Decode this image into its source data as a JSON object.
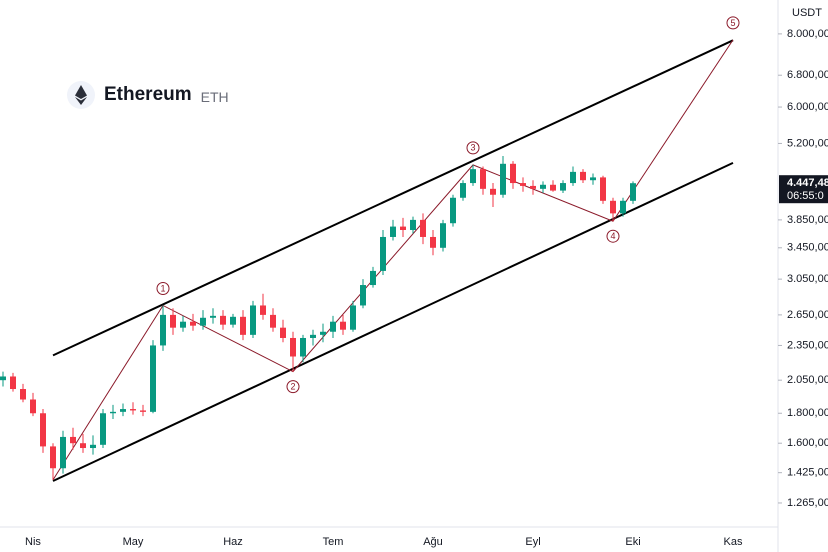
{
  "chart_data": {
    "type": "candlestick",
    "title": "Ethereum",
    "subtitle": "ETH",
    "y_unit": "USDT",
    "log_scale": true,
    "grid": false,
    "up_color": "#089981",
    "down_color": "#f23645",
    "categories": [
      null,
      null,
      null,
      "Nis",
      null,
      null,
      null,
      null,
      null,
      null,
      null,
      null,
      null,
      "May",
      null,
      null,
      null,
      null,
      null,
      null,
      null,
      null,
      null,
      "Haz",
      null,
      null,
      null,
      null,
      null,
      null,
      null,
      null,
      null,
      "Tem",
      null,
      null,
      null,
      null,
      null,
      null,
      null,
      null,
      null,
      "Ağu",
      null,
      null,
      null,
      null,
      null,
      null,
      null,
      null,
      null,
      "Eyl",
      null,
      null,
      null,
      null,
      null,
      null,
      null,
      null,
      null,
      "Eki",
      null,
      null,
      null,
      null,
      null,
      null,
      null,
      null,
      null,
      "Kas",
      null,
      null,
      null,
      null
    ],
    "open": [
      2050,
      2080,
      1980,
      1900,
      1800,
      1580,
      1450,
      1640,
      1600,
      1570,
      1590,
      1800,
      1810,
      1830,
      1820,
      1810,
      2350,
      2650,
      2520,
      2580,
      2540,
      2620,
      2640,
      2550,
      2630,
      2450,
      2750,
      2650,
      2520,
      2420,
      2250,
      2420,
      2450,
      2480,
      2580,
      2500,
      2750,
      2980,
      3150,
      3600,
      3750,
      3700,
      3850,
      3600,
      3450,
      3800,
      4200,
      4450,
      4700,
      4350,
      4250,
      4800,
      4450,
      4400,
      4350,
      4420,
      4320,
      4450,
      4650,
      4500,
      4550,
      4150,
      3950,
      4150,
      null,
      null,
      null,
      null,
      null,
      null,
      null,
      null,
      null,
      null,
      null,
      null,
      null,
      null
    ],
    "high": [
      2120,
      2110,
      2020,
      1950,
      1830,
      1600,
      1680,
      1700,
      1660,
      1650,
      1830,
      1860,
      1870,
      1880,
      1860,
      2400,
      2750,
      2720,
      2640,
      2660,
      2700,
      2720,
      2700,
      2660,
      2700,
      2800,
      2880,
      2720,
      2600,
      2480,
      2450,
      2500,
      2560,
      2640,
      2650,
      2800,
      3050,
      3200,
      3700,
      3850,
      3880,
      3900,
      3950,
      3700,
      3850,
      4250,
      4500,
      4780,
      4750,
      4450,
      4950,
      4850,
      4550,
      4500,
      4480,
      4500,
      4500,
      4750,
      4700,
      4620,
      4580,
      4200,
      4200,
      4480,
      null,
      null,
      null,
      null,
      null,
      null,
      null,
      null,
      null,
      null,
      null,
      null,
      null,
      null
    ],
    "low": [
      2000,
      1960,
      1880,
      1780,
      1540,
      1385,
      1420,
      1560,
      1540,
      1530,
      1570,
      1760,
      1780,
      1790,
      1780,
      1800,
      2300,
      2450,
      2480,
      2490,
      2500,
      2560,
      2500,
      2520,
      2400,
      2420,
      2600,
      2480,
      2380,
      2120,
      2200,
      2350,
      2380,
      2420,
      2450,
      2480,
      2720,
      2950,
      3100,
      3550,
      3600,
      3650,
      3500,
      3350,
      3400,
      3750,
      4150,
      4400,
      4250,
      4050,
      4200,
      4350,
      4300,
      4250,
      4280,
      4300,
      4280,
      4400,
      4450,
      4420,
      4100,
      3830,
      3900,
      4100,
      null,
      null,
      null,
      null,
      null,
      null,
      null,
      null,
      null,
      null,
      null,
      null,
      null,
      null
    ],
    "close": [
      2080,
      1980,
      1900,
      1800,
      1580,
      1450,
      1640,
      1600,
      1570,
      1590,
      1800,
      1810,
      1830,
      1820,
      1810,
      2350,
      2650,
      2520,
      2580,
      2540,
      2620,
      2640,
      2550,
      2630,
      2450,
      2750,
      2650,
      2520,
      2420,
      2250,
      2420,
      2450,
      2480,
      2580,
      2500,
      2750,
      2980,
      3150,
      3600,
      3750,
      3700,
      3850,
      3600,
      3450,
      3800,
      4200,
      4450,
      4700,
      4350,
      4250,
      4800,
      4450,
      4400,
      4350,
      4420,
      4320,
      4450,
      4650,
      4500,
      4550,
      4150,
      3950,
      4150,
      4447.48,
      null,
      null,
      null,
      null,
      null,
      null,
      null,
      null,
      null,
      null,
      null,
      null,
      null,
      null
    ],
    "ylim": [
      1160,
      9140
    ],
    "yticks": [
      {
        "value": 8000,
        "label": "8.000,00"
      },
      {
        "value": 6800,
        "label": "6.800,00"
      },
      {
        "value": 6000,
        "label": "6.000,00"
      },
      {
        "value": 5200,
        "label": "5.200,00"
      },
      {
        "value": 3850,
        "label": "3.850,00"
      },
      {
        "value": 3450,
        "label": "3.450,00"
      },
      {
        "value": 3050,
        "label": "3.050,00"
      },
      {
        "value": 2650,
        "label": "2.650,00"
      },
      {
        "value": 2350,
        "label": "2.350,00"
      },
      {
        "value": 2050,
        "label": "2.050,00"
      },
      {
        "value": 1800,
        "label": "1.800,00"
      },
      {
        "value": 1600,
        "label": "1.600,00"
      },
      {
        "value": 1425,
        "label": "1.425,00"
      },
      {
        "value": 1265,
        "label": "1.265,00"
      }
    ],
    "last_price": {
      "value": 4447.48,
      "label": "4.447,48",
      "countdown": "06:55:0"
    },
    "channel_color": "#000000",
    "channel": [
      {
        "start": [
          5,
          2260
        ],
        "end": [
          73,
          7800
        ]
      },
      {
        "start": [
          5,
          1379
        ],
        "end": [
          73,
          4817
        ]
      }
    ],
    "wave": {
      "color": "#8b1a2a",
      "points": [
        {
          "x": 5,
          "y": 1385
        },
        {
          "label": "1",
          "x": 16,
          "y": 2750
        },
        {
          "label": "2",
          "x": 29,
          "y": 2120
        },
        {
          "label": "3",
          "x": 47,
          "y": 4780
        },
        {
          "label": "4",
          "x": 61,
          "y": 3830
        },
        {
          "label": "5",
          "x": 73,
          "y": 7813
        }
      ]
    }
  }
}
